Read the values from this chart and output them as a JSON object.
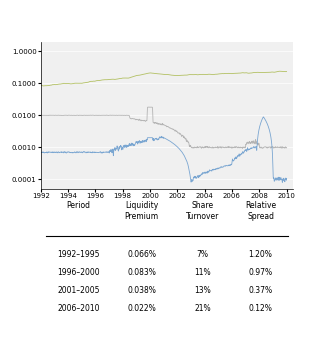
{
  "title": "",
  "ylim_log": [
    5e-05,
    2
  ],
  "yticks": [
    0.0001,
    0.001,
    0.01,
    0.1,
    1
  ],
  "ytick_labels": [
    "0.0001",
    "0.001",
    "0.01",
    "0.1",
    "1"
  ],
  "xlim": [
    1992,
    2010.5
  ],
  "xticks": [
    1992,
    1994,
    1996,
    1998,
    2000,
    2002,
    2004,
    2006,
    2008,
    2010
  ],
  "line_colors": {
    "turnover": "#a8b84b",
    "spread": "#aaaaaa",
    "liquidity": "#6699cc"
  },
  "table_headers": [
    "Period",
    "Liquidity\nPremium",
    "Share\nTurnover",
    "Relative\nSpread"
  ],
  "table_rows": [
    [
      "1992–1995",
      "0.066%",
      "7%",
      "1.20%"
    ],
    [
      "1996–2000",
      "0.083%",
      "11%",
      "0.97%"
    ],
    [
      "2001–2005",
      "0.038%",
      "13%",
      "0.37%"
    ],
    [
      "2006–2010",
      "0.022%",
      "21%",
      "0.12%"
    ]
  ],
  "background_color": "#ffffff",
  "chart_bg": "#f0f0f0"
}
